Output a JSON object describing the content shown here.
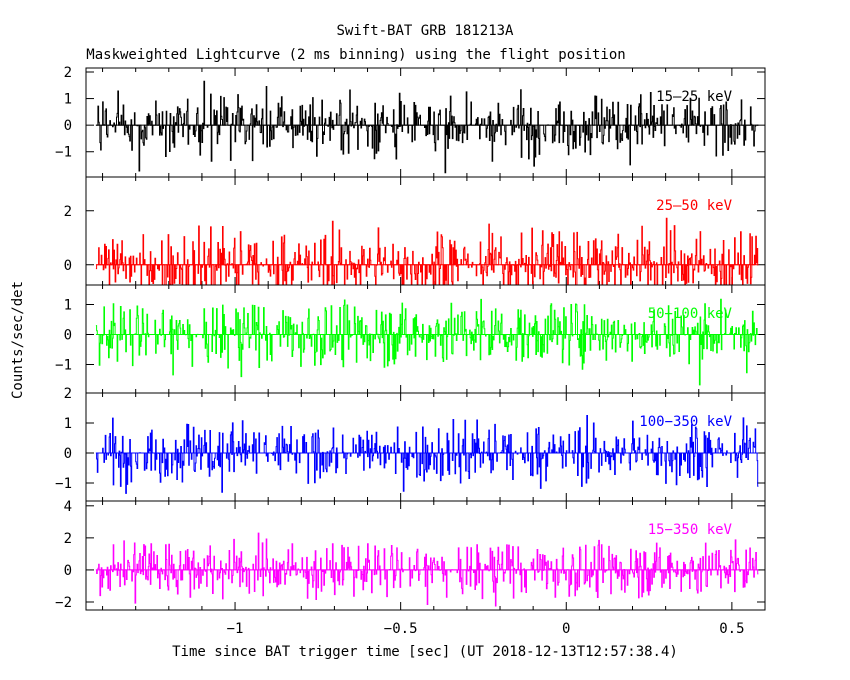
{
  "chart_data": {
    "type": "line",
    "title": "Swift-BAT GRB 181213A",
    "subtitle": "Maskweighted Lightcurve (2 ms binning) using the flight position",
    "xlabel": "Time since BAT trigger time [sec] (UT 2018-12-13T12:57:38.4)",
    "ylabel": "Counts/sec/det",
    "xlim": [
      -1.45,
      0.6
    ],
    "x_ticks": [
      -1,
      -0.5,
      0,
      0.5
    ],
    "x_tick_labels": [
      "−1",
      "−0.5",
      "0",
      "0.5"
    ],
    "bin_width_sec": 0.002,
    "data_range": [
      -1.42,
      0.58
    ],
    "grid": false,
    "panels": [
      {
        "name": "15–25 keV",
        "color": "#000000",
        "ylim": [
          -1.95,
          2.15
        ],
        "ticks": [
          -1,
          0,
          1,
          2
        ],
        "tick_labels": [
          "−1",
          "0",
          "1",
          "2"
        ],
        "amplitude": 0.8
      },
      {
        "name": "25–50 keV",
        "color": "#ff0000",
        "ylim": [
          -0.75,
          3.25
        ],
        "ticks": [
          0,
          2
        ],
        "tick_labels": [
          "0",
          "2"
        ],
        "amplitude": 0.9
      },
      {
        "name": "50−100 keV",
        "color": "#00ff00",
        "ylim": [
          -1.95,
          1.65
        ],
        "ticks": [
          -1,
          0,
          1
        ],
        "tick_labels": [
          "−1",
          "0",
          "1"
        ],
        "amplitude": 0.75
      },
      {
        "name": "100−350 keV",
        "color": "#0000ff",
        "ylim": [
          -1.6,
          2.0
        ],
        "ticks": [
          -1,
          0,
          1,
          2
        ],
        "tick_labels": [
          "−1",
          "0",
          "1",
          "2"
        ],
        "amplitude": 0.7
      },
      {
        "name": "15−350 keV",
        "color": "#ff00ff",
        "ylim": [
          -2.5,
          4.3
        ],
        "ticks": [
          -2,
          0,
          2,
          4
        ],
        "tick_labels": [
          "−2",
          "0",
          "2",
          "4"
        ],
        "amplitude": 1.2
      }
    ]
  }
}
